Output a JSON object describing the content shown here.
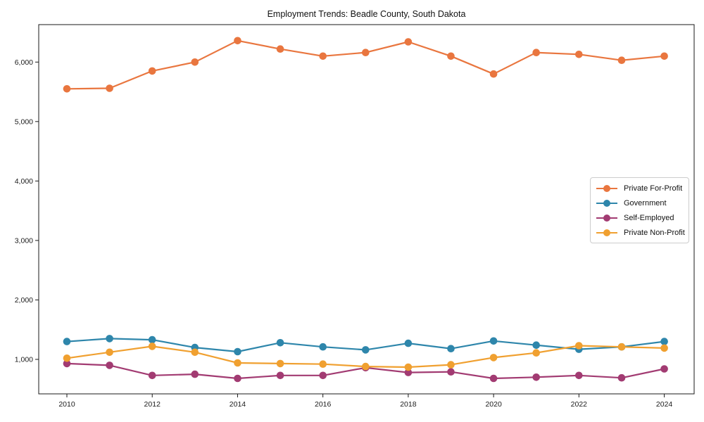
{
  "page": {
    "background": "#ffffff"
  },
  "chart_data": {
    "type": "line",
    "title": "Employment Trends: Beadle County, South Dakota",
    "xlabel": "",
    "ylabel": "",
    "x": [
      2010,
      2011,
      2012,
      2013,
      2014,
      2015,
      2016,
      2017,
      2018,
      2019,
      2020,
      2021,
      2022,
      2023,
      2024
    ],
    "xlim": [
      2009.34,
      2024.7
    ],
    "ylim": [
      420,
      6630
    ],
    "x_ticks": [
      2010,
      2012,
      2014,
      2016,
      2018,
      2020,
      2022,
      2024
    ],
    "x_tick_labels": [
      "2010",
      "2012",
      "2014",
      "2016",
      "2018",
      "2020",
      "2022",
      "2024"
    ],
    "y_ticks": [
      1000,
      2000,
      3000,
      4000,
      5000,
      6000
    ],
    "y_tick_labels": [
      "1,000",
      "2,000",
      "3,000",
      "4,000",
      "5,000",
      "6,000"
    ],
    "grid": false,
    "legend_position": "center right",
    "axis_color": "#1a1a1a",
    "tick_label_color": "#1a1a1a",
    "series": [
      {
        "name": "Private For-Profit",
        "color": "#E9763F",
        "values": [
          5550,
          5560,
          5850,
          6000,
          6360,
          6220,
          6100,
          6160,
          6340,
          6100,
          5800,
          6160,
          6130,
          6030,
          6100
        ]
      },
      {
        "name": "Government",
        "color": "#2E86AB",
        "values": [
          1300,
          1350,
          1330,
          1200,
          1130,
          1280,
          1210,
          1160,
          1270,
          1180,
          1310,
          1240,
          1170,
          1210,
          1300
        ]
      },
      {
        "name": "Self-Employed",
        "color": "#A23B72",
        "values": [
          930,
          900,
          730,
          750,
          680,
          730,
          730,
          860,
          780,
          790,
          680,
          700,
          730,
          690,
          840
        ]
      },
      {
        "name": "Private Non-Profit",
        "color": "#F0A030",
        "values": [
          1020,
          1120,
          1220,
          1120,
          940,
          930,
          920,
          880,
          870,
          910,
          1030,
          1110,
          1230,
          1210,
          1190
        ]
      }
    ]
  }
}
